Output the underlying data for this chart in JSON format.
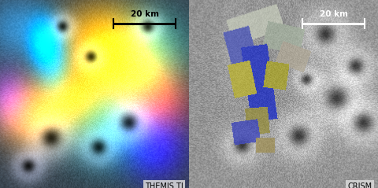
{
  "fig_width": 4.8,
  "fig_height": 2.39,
  "dpi": 100,
  "left_label": "THEMIS TI",
  "right_label": "CRISM",
  "scale_bar_text": "20 km",
  "label_fontsize": 7,
  "scalebar_fontsize": 7.5,
  "label_color": "#000000",
  "label_bg": "#d8d8d8",
  "left_scalebar_color": "#000000",
  "right_scalebar_color": "#ffffff"
}
